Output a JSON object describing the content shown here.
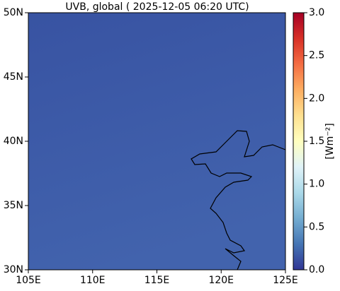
{
  "map": {
    "title": "UVB, global ( 2025-12-05 06:20 UTC)",
    "xlim": [
      105,
      125
    ],
    "xticks": [
      {
        "value": 105,
        "label": "105E"
      },
      {
        "value": 110,
        "label": "110E"
      },
      {
        "value": 115,
        "label": "115E"
      },
      {
        "value": 120,
        "label": "120E"
      },
      {
        "value": 125,
        "label": "125E"
      }
    ],
    "ylim": [
      30,
      50
    ],
    "yticks": [
      {
        "value": 30,
        "label": "30N"
      },
      {
        "value": 35,
        "label": "35N"
      },
      {
        "value": 40,
        "label": "40N"
      },
      {
        "value": 45,
        "label": "45N"
      },
      {
        "value": 50,
        "label": "50N"
      }
    ],
    "colorbar": {
      "label": "[Wm⁻²]",
      "lim": [
        0,
        3
      ],
      "ticks": [
        {
          "value": 0,
          "label": "0.0"
        },
        {
          "value": 0.5,
          "label": "0.5"
        },
        {
          "value": 1,
          "label": "1.0"
        },
        {
          "value": 1.5,
          "label": "1.5"
        },
        {
          "value": 2,
          "label": "2.0"
        },
        {
          "value": 2.5,
          "label": "2.5"
        },
        {
          "value": 3,
          "label": "3.0"
        }
      ],
      "colors": [
        "#313695",
        "#4575b4",
        "#74add1",
        "#abd9e9",
        "#e0f3f8",
        "#ffffbf",
        "#fee090",
        "#fdae61",
        "#f46d43",
        "#d73027",
        "#a50026"
      ]
    }
  }
}
